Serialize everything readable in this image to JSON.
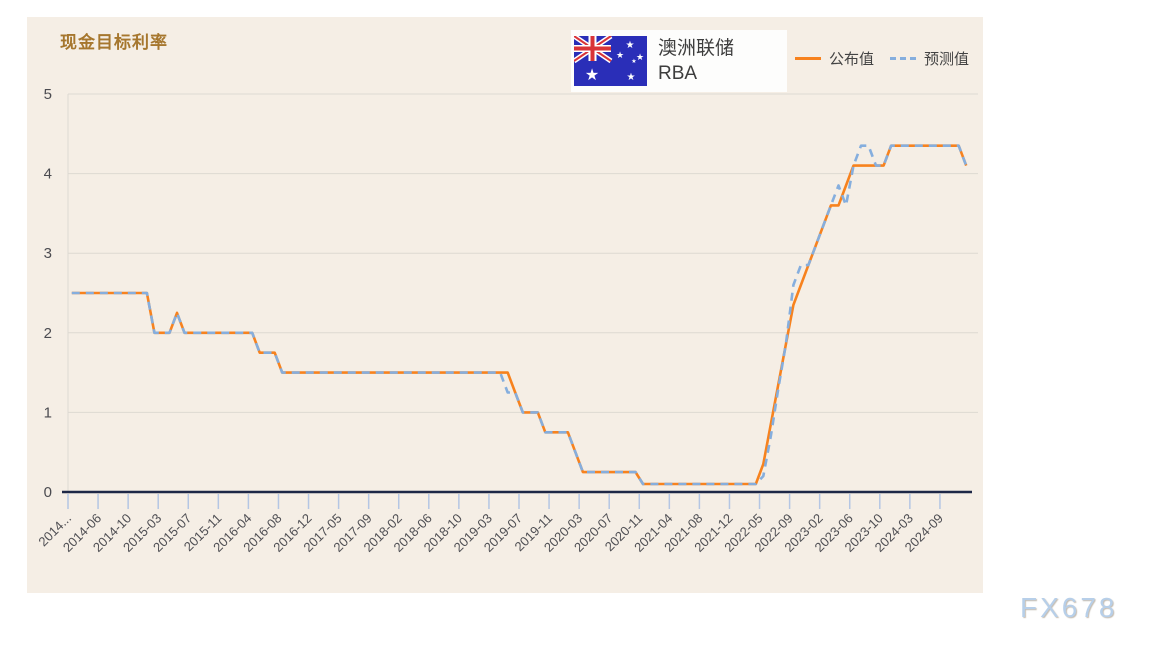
{
  "page": {
    "title": "现金目标利率",
    "watermark": "FX678",
    "accent_colors": {
      "announced": "#f7821e",
      "forecast": "#85aede",
      "panel_bg": "#f5eee5",
      "title": "#a6772e",
      "axis": "#1d2746"
    }
  },
  "instrument": {
    "flag": "australia-flag",
    "name_cn": "澳洲联储",
    "name_en": "RBA"
  },
  "legend": {
    "announced_label": "公布值",
    "forecast_label": "预测值"
  },
  "chart_data": {
    "type": "line",
    "title": "现金目标利率",
    "xlabel": "",
    "ylabel": "",
    "ylim": [
      0,
      5
    ],
    "y_ticks": [
      0,
      1,
      2,
      3,
      4,
      5
    ],
    "grid": true,
    "legend_position": "top-right",
    "x_tick_labels": [
      "2014...",
      "2014-06",
      "2014-10",
      "2015-03",
      "2015-07",
      "2015-11",
      "2016-04",
      "2016-08",
      "2016-12",
      "2017-05",
      "2017-09",
      "2018-02",
      "2018-06",
      "2018-10",
      "2019-03",
      "2019-07",
      "2019-11",
      "2020-03",
      "2020-07",
      "2020-11",
      "2021-04",
      "2021-08",
      "2021-12",
      "2022-05",
      "2022-09",
      "2023-02",
      "2023-06",
      "2023-10",
      "2024-03",
      "2024-09"
    ],
    "categories": [
      "2014-02",
      "2014-03",
      "2014-04",
      "2014-05",
      "2014-06",
      "2014-07",
      "2014-08",
      "2014-09",
      "2014-10",
      "2014-11",
      "2014-12",
      "2015-02",
      "2015-03",
      "2015-04",
      "2015-05",
      "2015-06",
      "2015-07",
      "2015-08",
      "2015-09",
      "2015-10",
      "2015-11",
      "2015-12",
      "2016-02",
      "2016-03",
      "2016-04",
      "2016-05",
      "2016-06",
      "2016-07",
      "2016-08",
      "2016-09",
      "2016-10",
      "2016-11",
      "2016-12",
      "2017-02",
      "2017-03",
      "2017-04",
      "2017-05",
      "2017-06",
      "2017-07",
      "2017-08",
      "2017-09",
      "2017-10",
      "2017-11",
      "2017-12",
      "2018-02",
      "2018-03",
      "2018-04",
      "2018-05",
      "2018-06",
      "2018-07",
      "2018-08",
      "2018-09",
      "2018-10",
      "2018-11",
      "2018-12",
      "2019-02",
      "2019-03",
      "2019-04",
      "2019-05",
      "2019-06",
      "2019-07",
      "2019-08",
      "2019-09",
      "2019-10",
      "2019-11",
      "2019-12",
      "2020-02",
      "2020-03",
      "2020-03",
      "2020-04",
      "2020-05",
      "2020-06",
      "2020-07",
      "2020-08",
      "2020-09",
      "2020-10",
      "2020-11",
      "2020-12",
      "2021-02",
      "2021-03",
      "2021-04",
      "2021-05",
      "2021-06",
      "2021-07",
      "2021-08",
      "2021-09",
      "2021-10",
      "2021-11",
      "2021-12",
      "2022-02",
      "2022-03",
      "2022-04",
      "2022-05",
      "2022-06",
      "2022-07",
      "2022-08",
      "2022-09",
      "2022-10",
      "2022-11",
      "2022-12",
      "2023-02",
      "2023-03",
      "2023-04",
      "2023-05",
      "2023-06",
      "2023-07",
      "2023-08",
      "2023-09",
      "2023-10",
      "2023-11",
      "2023-12",
      "2024-02",
      "2024-03",
      "2024-05",
      "2024-06",
      "2024-08",
      "2024-09",
      "2024-11",
      "2024-12",
      "2025-02"
    ],
    "series": [
      {
        "name": "公布值",
        "color": "#f7821e",
        "style": "solid",
        "values": [
          2.5,
          2.5,
          2.5,
          2.5,
          2.5,
          2.5,
          2.5,
          2.5,
          2.5,
          2.5,
          2.5,
          2.0,
          2.0,
          2.0,
          2.25,
          2.0,
          2.0,
          2.0,
          2.0,
          2.0,
          2.0,
          2.0,
          2.0,
          2.0,
          2.0,
          1.75,
          1.75,
          1.75,
          1.5,
          1.5,
          1.5,
          1.5,
          1.5,
          1.5,
          1.5,
          1.5,
          1.5,
          1.5,
          1.5,
          1.5,
          1.5,
          1.5,
          1.5,
          1.5,
          1.5,
          1.5,
          1.5,
          1.5,
          1.5,
          1.5,
          1.5,
          1.5,
          1.5,
          1.5,
          1.5,
          1.5,
          1.5,
          1.5,
          1.5,
          1.25,
          1.0,
          1.0,
          1.0,
          0.75,
          0.75,
          0.75,
          0.75,
          0.5,
          0.25,
          0.25,
          0.25,
          0.25,
          0.25,
          0.25,
          0.25,
          0.25,
          0.1,
          0.1,
          0.1,
          0.1,
          0.1,
          0.1,
          0.1,
          0.1,
          0.1,
          0.1,
          0.1,
          0.1,
          0.1,
          0.1,
          0.1,
          0.1,
          0.35,
          0.85,
          1.35,
          1.85,
          2.35,
          2.6,
          2.85,
          3.1,
          3.35,
          3.6,
          3.6,
          3.85,
          4.1,
          4.1,
          4.1,
          4.1,
          4.1,
          4.35,
          4.35,
          4.35,
          4.35,
          4.35,
          4.35,
          4.35,
          4.35,
          4.35,
          4.35,
          4.1
        ]
      },
      {
        "name": "预测值",
        "color": "#85aede",
        "style": "dashed",
        "values": [
          2.5,
          2.5,
          2.5,
          2.5,
          2.5,
          2.5,
          2.5,
          2.5,
          2.5,
          2.5,
          2.5,
          2.0,
          2.0,
          2.0,
          2.25,
          2.0,
          2.0,
          2.0,
          2.0,
          2.0,
          2.0,
          2.0,
          2.0,
          2.0,
          2.0,
          1.75,
          1.75,
          1.75,
          1.5,
          1.5,
          1.5,
          1.5,
          1.5,
          1.5,
          1.5,
          1.5,
          1.5,
          1.5,
          1.5,
          1.5,
          1.5,
          1.5,
          1.5,
          1.5,
          1.5,
          1.5,
          1.5,
          1.5,
          1.5,
          1.5,
          1.5,
          1.5,
          1.5,
          1.5,
          1.5,
          1.5,
          1.5,
          1.5,
          1.25,
          1.25,
          1.0,
          1.0,
          1.0,
          0.75,
          0.75,
          0.75,
          0.75,
          0.5,
          0.25,
          0.25,
          0.25,
          0.25,
          0.25,
          0.25,
          0.25,
          0.25,
          0.1,
          0.1,
          0.1,
          0.1,
          0.1,
          0.1,
          0.1,
          0.1,
          0.1,
          0.1,
          0.1,
          0.1,
          0.1,
          0.1,
          0.1,
          0.1,
          0.2,
          0.7,
          1.3,
          1.85,
          2.6,
          2.85,
          2.85,
          3.1,
          3.35,
          3.6,
          3.85,
          3.6,
          4.1,
          4.35,
          4.35,
          4.1,
          4.1,
          4.35,
          4.35,
          4.35,
          4.35,
          4.35,
          4.35,
          4.35,
          4.35,
          4.35,
          4.35,
          4.1
        ]
      }
    ]
  }
}
